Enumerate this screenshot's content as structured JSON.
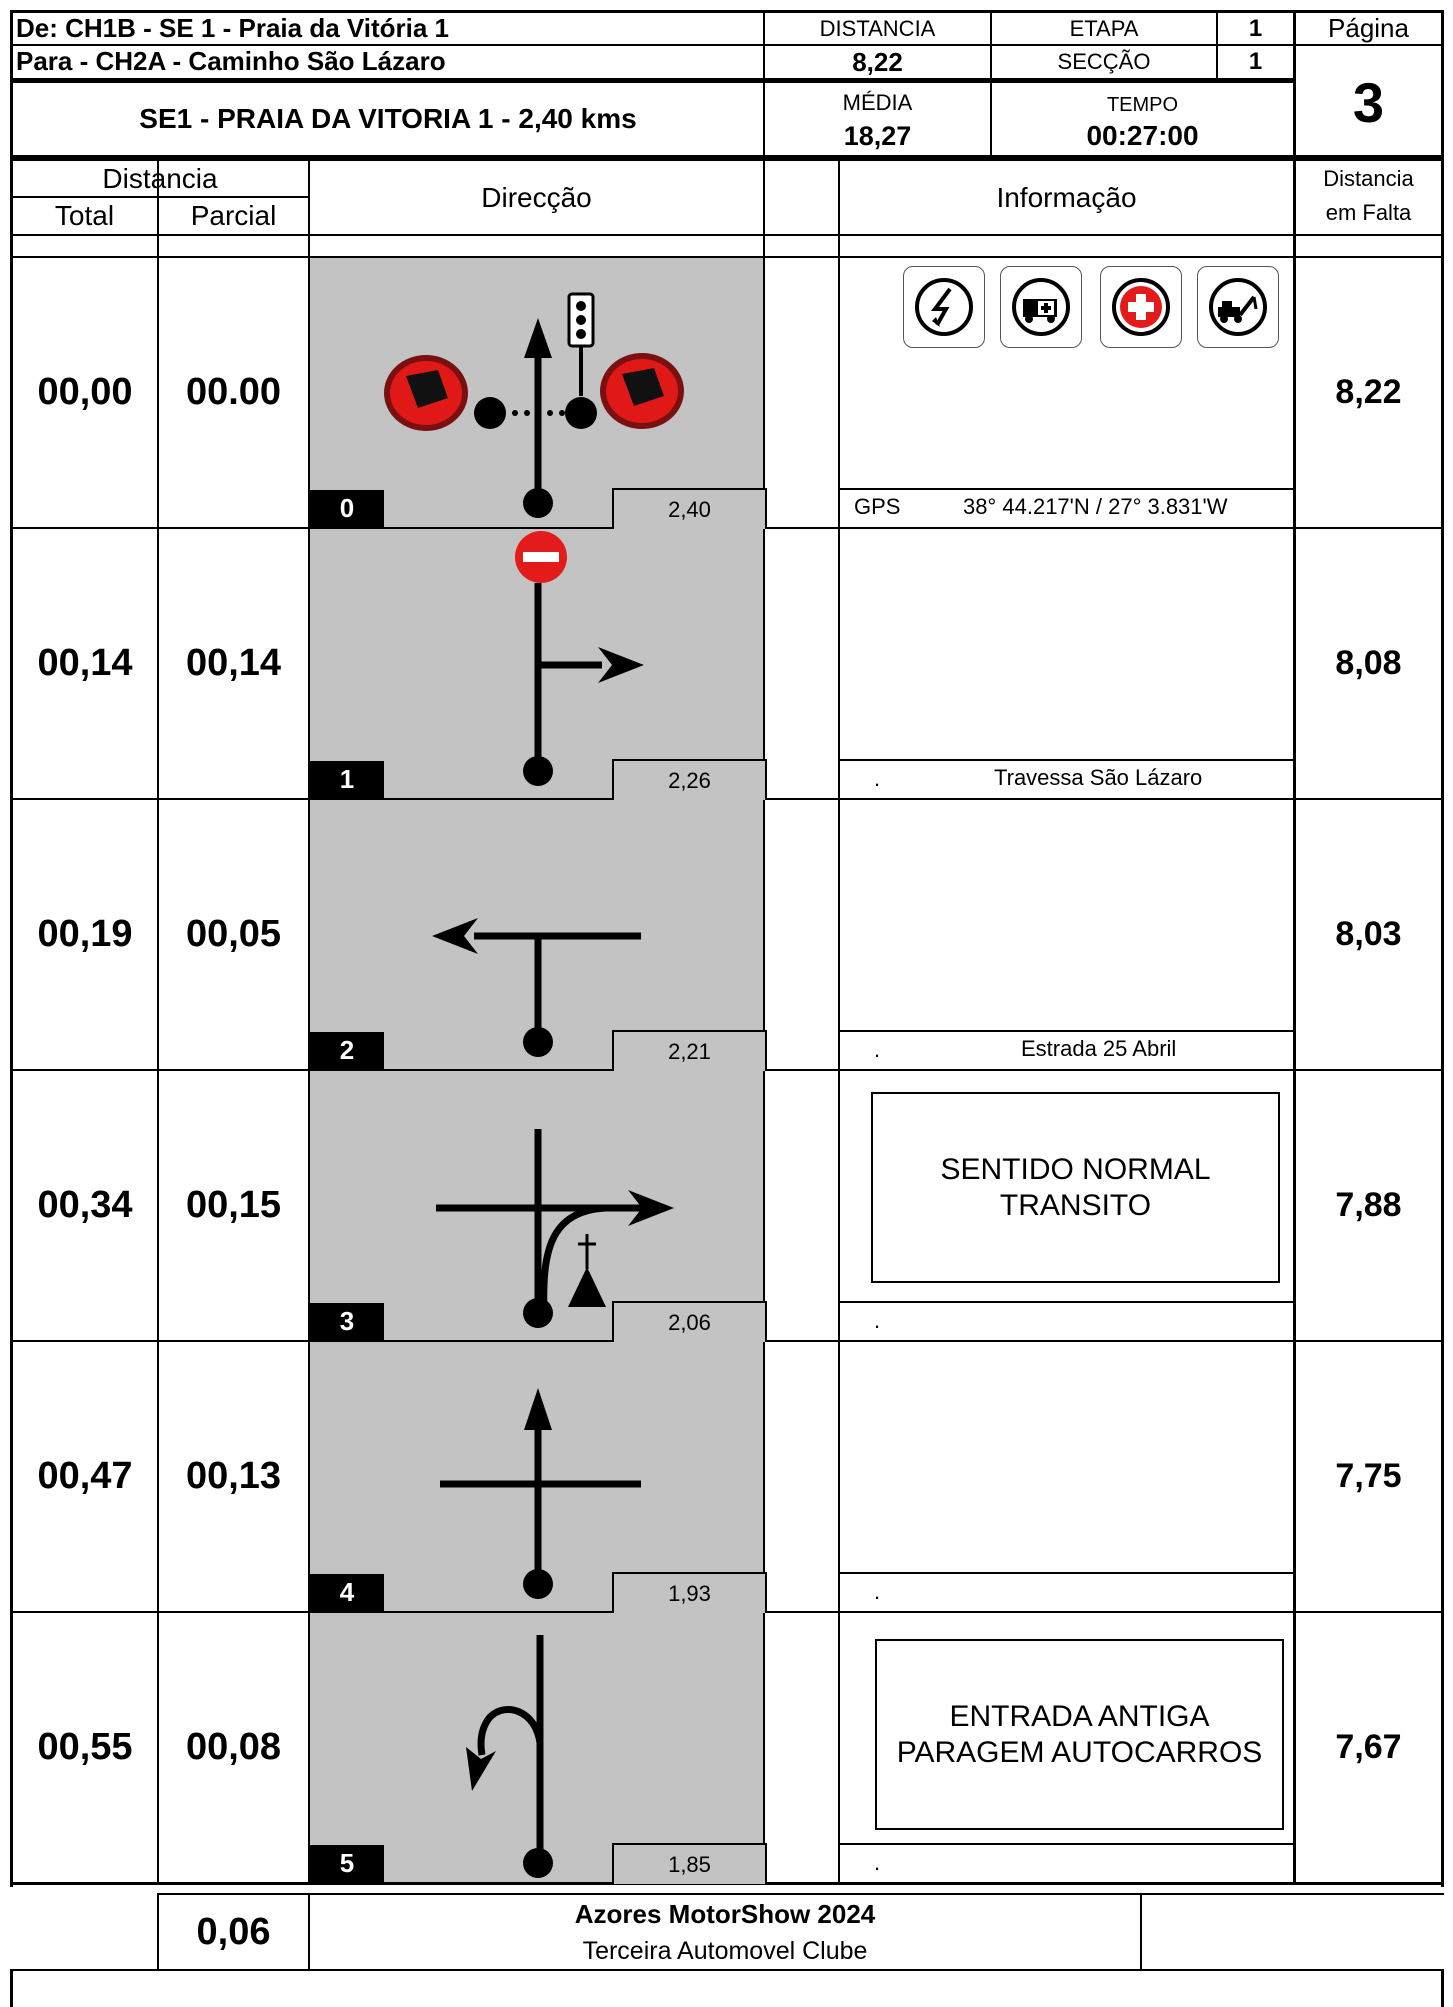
{
  "header": {
    "from_label": "De:  CH1B - SE 1 - Praia da Vitória 1",
    "to_label": "Para - CH2A - Caminho São Lázaro",
    "distancia_label": "DISTANCIA",
    "distancia_value": "8,22",
    "etapa_label": "ETAPA",
    "etapa_value": "1",
    "seccao_label": "SECÇÃO",
    "seccao_value": "1",
    "pagina_label": "Página",
    "pagina_value": "3",
    "stage_title": "SE1 - PRAIA DA VITORIA 1 - 2,40 kms",
    "media_label": "MÉDIA",
    "media_value": "18,27",
    "tempo_label": "TEMPO",
    "tempo_value": "00:27:00"
  },
  "columns": {
    "distancia": "Distancia",
    "total": "Total",
    "parcial": "Parcial",
    "direccao": "Direcção",
    "informacao": "Informação",
    "falta_line1": "Distancia",
    "falta_line2": "em Falta"
  },
  "rows": [
    {
      "total": "00,00",
      "parcial": "00.00",
      "num": "0",
      "dist": "2,40",
      "falta": "8,22",
      "info_left": "GPS",
      "info_text": "38° 44.217'N /  27° 3.831'W",
      "note": ""
    },
    {
      "total": "00,14",
      "parcial": "00,14",
      "num": "1",
      "dist": "2,26",
      "falta": "8,08",
      "info_left": ".",
      "info_text": "Travessa São Lázaro",
      "note": ""
    },
    {
      "total": "00,19",
      "parcial": "00,05",
      "num": "2",
      "dist": "2,21",
      "falta": "8,03",
      "info_left": ".",
      "info_text": "Estrada 25 Abril",
      "note": ""
    },
    {
      "total": "00,34",
      "parcial": "00,15",
      "num": "3",
      "dist": "2,06",
      "falta": "7,88",
      "info_left": ".",
      "info_text": "",
      "note_line1": "SENTIDO NORMAL",
      "note_line2": "TRANSITO"
    },
    {
      "total": "00,47",
      "parcial": "00,13",
      "num": "4",
      "dist": "1,93",
      "falta": "7,75",
      "info_left": ".",
      "info_text": "",
      "note": ""
    },
    {
      "total": "00,55",
      "parcial": "00,08",
      "num": "5",
      "dist": "1,85",
      "falta": "7,67",
      "info_left": ".",
      "info_text": "",
      "note_line1": "ENTRADA ANTIGA",
      "note_line2": "PARAGEM AUTOCARROS"
    }
  ],
  "safety_icons": [
    "radio-lightning-icon",
    "ambulance-icon",
    "red-cross-icon",
    "tow-truck-icon"
  ],
  "footer": {
    "distance": "0,06",
    "title": "Azores MotorShow 2024",
    "subtitle": "Terceira Automovel Clube"
  }
}
